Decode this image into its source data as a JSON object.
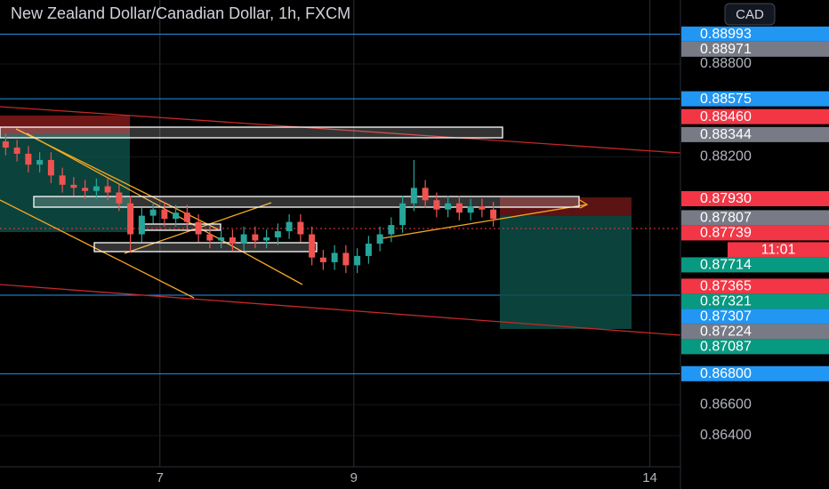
{
  "header": {
    "title": "New Zealand Dollar/Canadian Dollar, 1h, FXCM",
    "currency": "CAD",
    "countdown": "11:01"
  },
  "chart_data": {
    "type": "candlestick",
    "open": [
      0.883,
      0.8826,
      0.8822,
      0.8815,
      0.8818,
      0.8808,
      0.8802,
      0.88,
      0.8798,
      0.8801,
      0.8797,
      0.879,
      0.877,
      0.8782,
      0.8786,
      0.878,
      0.8784,
      0.8778,
      0.877,
      0.8766,
      0.8768,
      0.8764,
      0.877,
      0.8766,
      0.8768,
      0.8772,
      0.8778,
      0.877,
      0.8755,
      0.8752,
      0.8758,
      0.875,
      0.8756,
      0.8764,
      0.877,
      0.8776,
      0.879,
      0.88,
      0.8792,
      0.8786,
      0.879,
      0.8784,
      0.8788,
      0.8786
    ],
    "high": [
      0.8835,
      0.8831,
      0.8827,
      0.8823,
      0.8823,
      0.8813,
      0.8807,
      0.8805,
      0.8806,
      0.8806,
      0.8802,
      0.8795,
      0.8787,
      0.8791,
      0.8791,
      0.8789,
      0.8789,
      0.8783,
      0.8775,
      0.8773,
      0.8773,
      0.8775,
      0.8775,
      0.8773,
      0.8777,
      0.8783,
      0.8783,
      0.8775,
      0.876,
      0.8763,
      0.8763,
      0.8761,
      0.8769,
      0.8775,
      0.8781,
      0.8795,
      0.8818,
      0.8805,
      0.8797,
      0.8795,
      0.8795,
      0.8793,
      0.8793,
      0.8791
    ],
    "low": [
      0.8821,
      0.8817,
      0.881,
      0.881,
      0.8803,
      0.8797,
      0.8795,
      0.8793,
      0.8793,
      0.8792,
      0.8785,
      0.8758,
      0.8765,
      0.8777,
      0.8775,
      0.8775,
      0.8773,
      0.8765,
      0.8761,
      0.8761,
      0.8759,
      0.8759,
      0.8761,
      0.8761,
      0.8763,
      0.8767,
      0.8765,
      0.875,
      0.8747,
      0.8747,
      0.8745,
      0.8745,
      0.8751,
      0.8759,
      0.8765,
      0.8771,
      0.8785,
      0.8787,
      0.8781,
      0.8781,
      0.8779,
      0.8779,
      0.8781,
      0.8775
    ],
    "close": [
      0.8826,
      0.8822,
      0.8815,
      0.8818,
      0.8808,
      0.8802,
      0.88,
      0.8798,
      0.8801,
      0.8797,
      0.879,
      0.877,
      0.8782,
      0.8786,
      0.878,
      0.8784,
      0.8778,
      0.877,
      0.8766,
      0.8768,
      0.8764,
      0.877,
      0.8766,
      0.8768,
      0.8772,
      0.8778,
      0.877,
      0.8755,
      0.8752,
      0.8758,
      0.875,
      0.8756,
      0.8764,
      0.877,
      0.8776,
      0.879,
      0.88,
      0.8792,
      0.8786,
      0.879,
      0.8784,
      0.8788,
      0.8786,
      0.878
    ],
    "up_color": "#26a69a",
    "down_color": "#ef5350",
    "xlim": [
      0,
      60
    ],
    "xticks": [
      {
        "value": 14.1,
        "label": "7"
      },
      {
        "value": 31.2,
        "label": "9"
      },
      {
        "value": 57.3,
        "label": "14"
      }
    ],
    "ylim": [
      0.86199,
      0.89213
    ],
    "yticks": [
      {
        "value": 0.888,
        "label": "0.88800"
      },
      {
        "value": 0.882,
        "label": "0.88200"
      },
      {
        "value": 0.866,
        "label": "0.86600"
      },
      {
        "value": 0.864,
        "label": "0.86400"
      }
    ],
    "price_tags": [
      {
        "value": 0.88993,
        "color": "#2196f3",
        "line": true
      },
      {
        "value": 0.88971,
        "color": "#787b86",
        "line": false
      },
      {
        "value": 0.88575,
        "color": "#2196f3",
        "line": true
      },
      {
        "value": 0.8846,
        "label": "0.88460",
        "color": "#f23645",
        "line": false
      },
      {
        "value": 0.88344,
        "color": "#787b86",
        "line": false
      },
      {
        "value": 0.8793,
        "label": "0.87930",
        "color": "#f23645",
        "line": false
      },
      {
        "value": 0.87807,
        "color": "#787b86",
        "line": false
      },
      {
        "value": 0.87739,
        "color": "#f23645",
        "line": false
      },
      {
        "value": 0.87714,
        "color": "#089981",
        "line": false
      },
      {
        "value": 0.87365,
        "color": "#f23645",
        "line": false
      },
      {
        "value": 0.87321,
        "color": "#089981",
        "line": false
      },
      {
        "value": 0.87307,
        "color": "#2196f3",
        "line": true
      },
      {
        "value": 0.87224,
        "color": "#787b86",
        "line": false
      },
      {
        "value": 0.87087,
        "color": "#089981",
        "line": false
      },
      {
        "value": 0.868,
        "label": "0.86800",
        "color": "#2196f3",
        "line": true
      }
    ]
  }
}
